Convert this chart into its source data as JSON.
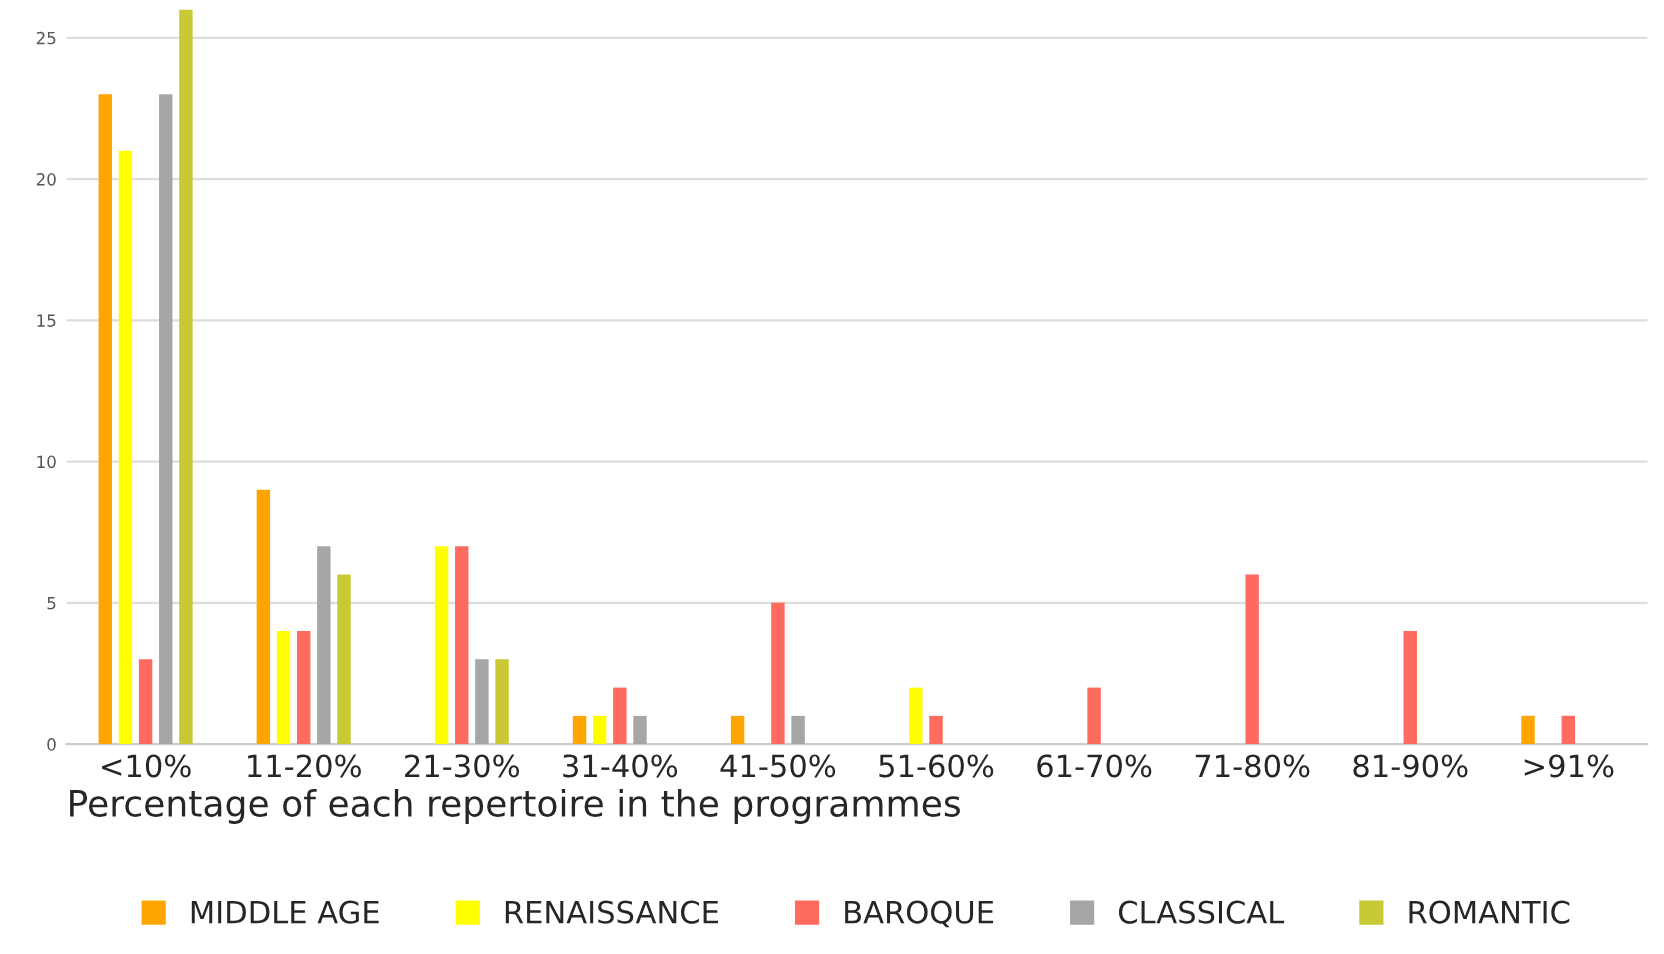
{
  "chart_data": {
    "type": "bar",
    "xlabel": "Percentage of each repertoire in the programmes",
    "categories": [
      "<10%",
      "11-20%",
      "21-30%",
      "31-40%",
      "41-50%",
      "51-60%",
      "61-70%",
      "71-80%",
      "81-90%",
      ">91%"
    ],
    "series": [
      {
        "name": "MIDDLE AGE",
        "color": "#ffa500",
        "values": [
          23,
          9,
          null,
          1,
          1,
          null,
          null,
          null,
          null,
          1
        ]
      },
      {
        "name": "RENAISSANCE",
        "color": "#ffff00",
        "values": [
          21,
          4,
          7,
          1,
          null,
          2,
          null,
          null,
          null,
          null
        ]
      },
      {
        "name": "BAROQUE",
        "color": "#ff6b5e",
        "values": [
          3,
          4,
          7,
          2,
          5,
          1,
          2,
          6,
          4,
          1
        ]
      },
      {
        "name": "CLASSICAL",
        "color": "#a6a6a6",
        "values": [
          23,
          7,
          3,
          1,
          1,
          null,
          null,
          null,
          null,
          null
        ]
      },
      {
        "name": "ROMANTIC",
        "color": "#c9c936",
        "values": [
          26,
          6,
          3,
          null,
          null,
          null,
          null,
          null,
          null,
          null
        ]
      }
    ],
    "ylim": [
      0,
      26
    ],
    "yticks": [
      0,
      5,
      10,
      15,
      20,
      25
    ],
    "grid": "y",
    "legend": "bottom"
  }
}
